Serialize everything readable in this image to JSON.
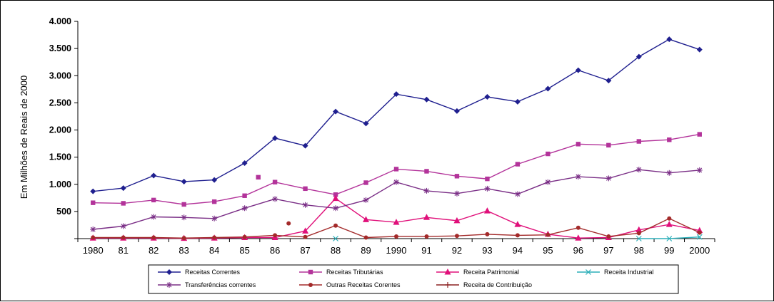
{
  "chart_data": {
    "type": "line",
    "ylabel": "Em Milhões de Reais de 2000",
    "xlabel": "",
    "ylim": [
      0,
      4000
    ],
    "yticks": [
      0,
      500,
      1000,
      1500,
      2000,
      2500,
      3000,
      3500,
      4000
    ],
    "ytick_labels": [
      "",
      "500",
      "1.000",
      "1.500",
      "2.000",
      "2.500",
      "3.000",
      "3.500",
      "4.000"
    ],
    "x": [
      "1980",
      "81",
      "82",
      "83",
      "84",
      "85",
      "86",
      "87",
      "88",
      "89",
      "1990",
      "91",
      "92",
      "93",
      "94",
      "95",
      "96",
      "97",
      "98",
      "99",
      "2000"
    ],
    "grid": false,
    "legend_position": "bottom",
    "series": [
      {
        "name": "Receitas Correntes",
        "color": "#1f1f8f",
        "marker": "diamond",
        "values": [
          870,
          930,
          1160,
          1050,
          1080,
          1390,
          1850,
          1710,
          2340,
          2120,
          2660,
          2560,
          2350,
          2610,
          2520,
          2760,
          3100,
          2910,
          3350,
          3670,
          3480
        ]
      },
      {
        "name": "Receitas Tributárias",
        "color": "#b3339a",
        "marker": "square",
        "values": [
          660,
          650,
          710,
          630,
          680,
          790,
          1040,
          920,
          810,
          1030,
          1280,
          1240,
          1150,
          1100,
          1370,
          1560,
          1740,
          1720,
          1790,
          1820,
          1920
        ]
      },
      {
        "name": "Receita Patrimonial",
        "color": "#e0107a",
        "marker": "triangle",
        "values": [
          10,
          10,
          10,
          5,
          10,
          20,
          20,
          140,
          740,
          350,
          300,
          390,
          330,
          510,
          260,
          80,
          10,
          20,
          160,
          260,
          150
        ]
      },
      {
        "name": "Receita Industrial",
        "color": "#2aaeb8",
        "marker": "x",
        "values": [
          null,
          null,
          null,
          null,
          null,
          null,
          null,
          null,
          0,
          null,
          null,
          null,
          null,
          null,
          null,
          null,
          null,
          null,
          0,
          0,
          30
        ]
      },
      {
        "name": "Transferências correntes",
        "color": "#7a2e86",
        "marker": "star",
        "values": [
          170,
          230,
          400,
          390,
          370,
          560,
          730,
          620,
          560,
          710,
          1040,
          880,
          830,
          920,
          820,
          1040,
          1140,
          1110,
          1270,
          1210,
          1260
        ]
      },
      {
        "name": "Outras Receitas Corentes",
        "color": "#a32a2a",
        "marker": "circle",
        "values": [
          20,
          20,
          20,
          10,
          20,
          30,
          60,
          30,
          240,
          20,
          40,
          40,
          50,
          80,
          60,
          70,
          200,
          40,
          100,
          370,
          110
        ]
      },
      {
        "name": "Receita de Contribuição",
        "color": "#8b2020",
        "marker": "plus",
        "values": [
          null,
          null,
          null,
          null,
          null,
          null,
          null,
          null,
          null,
          null,
          null,
          null,
          null,
          null,
          null,
          null,
          null,
          null,
          null,
          null,
          null
        ]
      }
    ],
    "isolated_points": [
      {
        "series": "Receitas Tributárias",
        "x": "85",
        "y": 1130
      },
      {
        "series": "Outras Receitas Corentes",
        "x": "86",
        "y": 280
      }
    ]
  }
}
